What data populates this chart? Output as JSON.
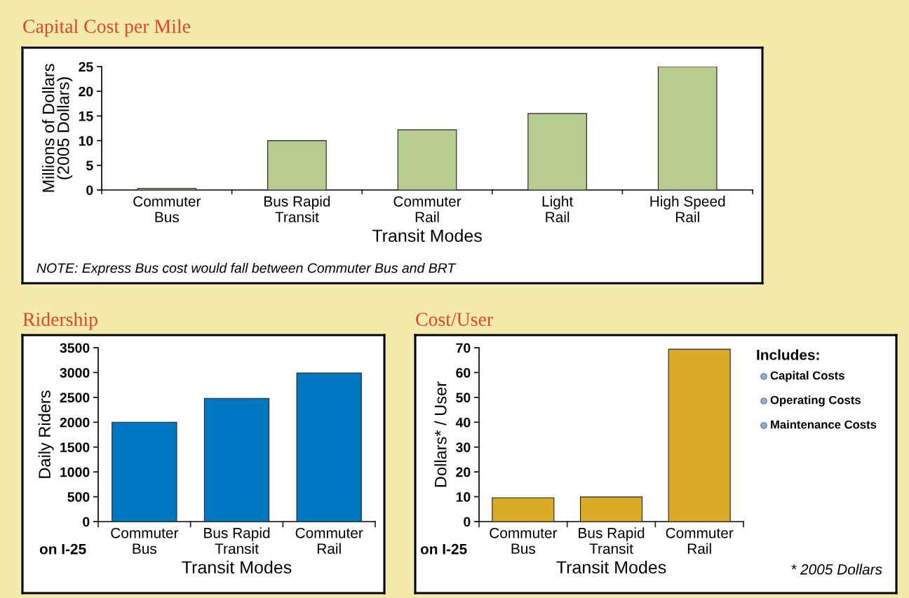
{
  "chart_data": [
    {
      "type": "bar",
      "title": "Capital Cost per Mile",
      "xlabel": "Transit Modes",
      "ylabel": "Millions of Dollars\n(2005 Dollars)",
      "categories": [
        "Commuter\nBus",
        "Bus Rapid\nTransit",
        "Commuter\nRail",
        "Light\nRail",
        "High Speed\nRail"
      ],
      "values": [
        0.3,
        10,
        12.2,
        15.5,
        25
      ],
      "color": "#b7cc8f",
      "ylim": [
        0,
        25
      ],
      "yticks": [
        0,
        5,
        10,
        15,
        20,
        25
      ],
      "grid": false,
      "legend": false,
      "annotations": [
        "NOTE: Express Bus cost would fall between Commuter Bus and BRT"
      ]
    },
    {
      "type": "bar",
      "title": "Ridership",
      "xlabel": "Transit Modes",
      "ylabel": "Daily Riders",
      "categories": [
        "Commuter\nBus",
        "Bus Rapid\nTransit",
        "Commuter\nRail"
      ],
      "values": [
        2000,
        2480,
        2990
      ],
      "color": "#0077c0",
      "ylim": [
        0,
        3500
      ],
      "yticks": [
        0,
        500,
        1000,
        1500,
        2000,
        2500,
        3000,
        3500
      ],
      "grid": false,
      "legend": false,
      "annotations": [
        "on I-25"
      ]
    },
    {
      "type": "bar",
      "title": "Cost/User",
      "xlabel": "Transit Modes",
      "ylabel": "Dollars* / User",
      "categories": [
        "Commuter\nBus",
        "Bus Rapid\nTransit",
        "Commuter\nRail"
      ],
      "values": [
        9.6,
        9.9,
        69.4
      ],
      "color": "#d9ab28",
      "ylim": [
        0,
        70
      ],
      "yticks": [
        0,
        10,
        20,
        30,
        40,
        50,
        60,
        70
      ],
      "grid": false,
      "legend": false,
      "annotations": [
        "on I-25",
        "Includes:",
        "Capital Costs",
        "Operating Costs",
        "Maintenance Costs",
        "* 2005 Dollars"
      ]
    }
  ]
}
